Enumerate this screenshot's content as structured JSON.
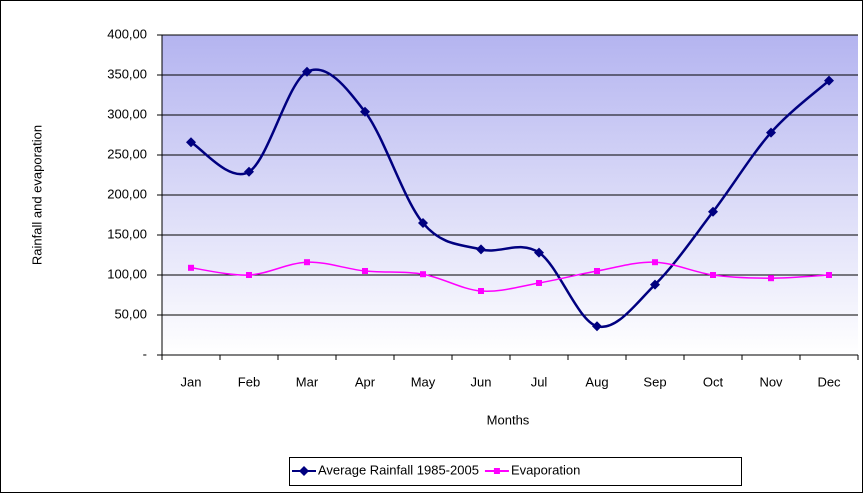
{
  "chart_data": {
    "type": "line",
    "y_label": "Rainfall and evaporation",
    "x_label": "Months",
    "categories": [
      "Jan",
      "Feb",
      "Mar",
      "Apr",
      "May",
      "Jun",
      "Jul",
      "Aug",
      "Sep",
      "Oct",
      "Nov",
      "Dec"
    ],
    "series": [
      {
        "name": "Average Rainfall 1985-2005",
        "color": "#000080",
        "marker": "diamond",
        "values": [
          266,
          229,
          354,
          304,
          165,
          132,
          128,
          36,
          88,
          179,
          278,
          343
        ]
      },
      {
        "name": "Evaporation",
        "color": "#ff00ff",
        "marker": "square",
        "values": [
          109,
          100,
          116,
          105,
          101,
          80,
          90,
          105,
          116,
          100,
          96,
          100
        ]
      }
    ],
    "ylim": [
      0,
      400
    ],
    "yticks": [
      {
        "value": 0,
        "label": "-"
      },
      {
        "value": 50,
        "label": "50,00"
      },
      {
        "value": 100,
        "label": "100,00"
      },
      {
        "value": 150,
        "label": "150,00"
      },
      {
        "value": 200,
        "label": "200,00"
      },
      {
        "value": 250,
        "label": "250,00"
      },
      {
        "value": 300,
        "label": "300,00"
      },
      {
        "value": 350,
        "label": "350,00"
      },
      {
        "value": 400,
        "label": "400,00"
      }
    ],
    "grid": true,
    "smooth": true,
    "legend": "bottom"
  }
}
